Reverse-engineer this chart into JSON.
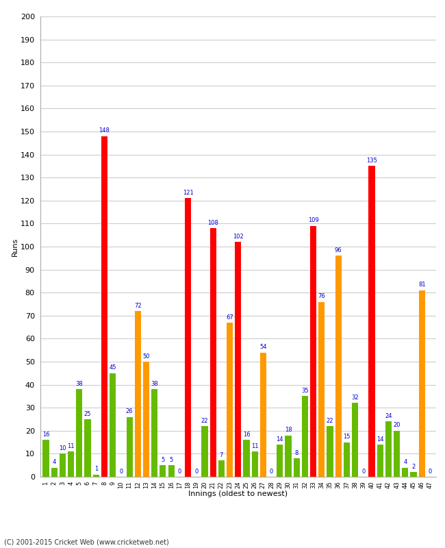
{
  "innings": [
    1,
    2,
    3,
    4,
    5,
    6,
    7,
    8,
    9,
    10,
    11,
    12,
    13,
    14,
    15,
    16,
    17,
    18,
    19,
    20,
    21,
    22,
    23,
    24,
    25,
    26,
    27,
    28,
    29,
    30,
    31,
    32,
    33,
    34,
    35,
    36,
    37,
    38,
    39,
    40,
    41,
    42,
    43,
    44,
    45,
    46,
    47
  ],
  "values": [
    16,
    4,
    10,
    11,
    38,
    25,
    1,
    148,
    45,
    0,
    26,
    72,
    50,
    38,
    5,
    5,
    0,
    121,
    0,
    22,
    108,
    7,
    67,
    102,
    16,
    11,
    54,
    0,
    14,
    18,
    8,
    35,
    109,
    76,
    22,
    96,
    15,
    32,
    0,
    135,
    14,
    24,
    20,
    4,
    2,
    81,
    0
  ],
  "colors": [
    "#66bb00",
    "#66bb00",
    "#66bb00",
    "#66bb00",
    "#66bb00",
    "#66bb00",
    "#66bb00",
    "#ff0000",
    "#66bb00",
    "#66bb00",
    "#66bb00",
    "#ff9900",
    "#ff9900",
    "#66bb00",
    "#66bb00",
    "#66bb00",
    "#66bb00",
    "#ff0000",
    "#66bb00",
    "#66bb00",
    "#ff0000",
    "#66bb00",
    "#ff9900",
    "#ff0000",
    "#66bb00",
    "#66bb00",
    "#ff9900",
    "#66bb00",
    "#66bb00",
    "#66bb00",
    "#66bb00",
    "#66bb00",
    "#ff0000",
    "#ff9900",
    "#66bb00",
    "#ff9900",
    "#66bb00",
    "#66bb00",
    "#66bb00",
    "#ff0000",
    "#66bb00",
    "#66bb00",
    "#66bb00",
    "#66bb00",
    "#66bb00",
    "#ff9900",
    "#66bb00"
  ],
  "ylabel": "Runs",
  "xlabel": "Innings (oldest to newest)",
  "ylim": [
    0,
    200
  ],
  "yticks": [
    0,
    10,
    20,
    30,
    40,
    50,
    60,
    70,
    80,
    90,
    100,
    110,
    120,
    130,
    140,
    150,
    160,
    170,
    180,
    190,
    200
  ],
  "footnote": "(C) 2001-2015 Cricket Web (www.cricketweb.net)",
  "value_color": "#0000cc",
  "value_fontsize": 6,
  "bar_width": 0.75,
  "bg_color": "#ffffff",
  "grid_color": "#cccccc"
}
